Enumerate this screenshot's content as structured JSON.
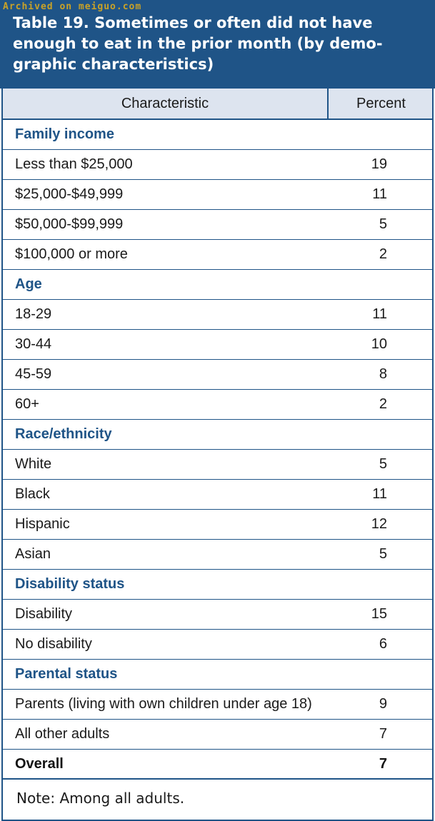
{
  "watermark": "Archived on meiguo.com",
  "title": "Table 19. Sometimes or often did not have enough to eat in the prior month (by demo-graphic characteristics)",
  "columns": {
    "characteristic": "Characteristic",
    "percent": "Percent"
  },
  "rows": [
    {
      "label": "Family income",
      "value": ""
    },
    {
      "label": "Less than $25,000",
      "value": "19"
    },
    {
      "label": "$25,000-$49,999",
      "value": "11"
    },
    {
      "label": "$50,000-$99,999",
      "value": "5"
    },
    {
      "label": "$100,000 or more",
      "value": "2"
    },
    {
      "label": "Age",
      "value": ""
    },
    {
      "label": "18-29",
      "value": "11"
    },
    {
      "label": "30-44",
      "value": "10"
    },
    {
      "label": "45-59",
      "value": "8"
    },
    {
      "label": "60+",
      "value": "2"
    },
    {
      "label": "Race/ethnicity",
      "value": ""
    },
    {
      "label": "White",
      "value": "5"
    },
    {
      "label": "Black",
      "value": "11"
    },
    {
      "label": "Hispanic",
      "value": "12"
    },
    {
      "label": "Asian",
      "value": "5"
    },
    {
      "label": "Disability status",
      "value": ""
    },
    {
      "label": "Disability",
      "value": "15"
    },
    {
      "label": "No disability",
      "value": "6"
    },
    {
      "label": "Parental status",
      "value": ""
    },
    {
      "label": "Parents (living with own children under age 18)",
      "value": "9"
    },
    {
      "label": "All other adults",
      "value": "7"
    },
    {
      "label": "Overall",
      "value": "7"
    }
  ],
  "note": "Note: Among all adults.",
  "colors": {
    "header_bg": "#1f5487",
    "column_header_bg": "#dde4ef",
    "section_text": "#1f5487",
    "watermark": "#c9a227"
  }
}
